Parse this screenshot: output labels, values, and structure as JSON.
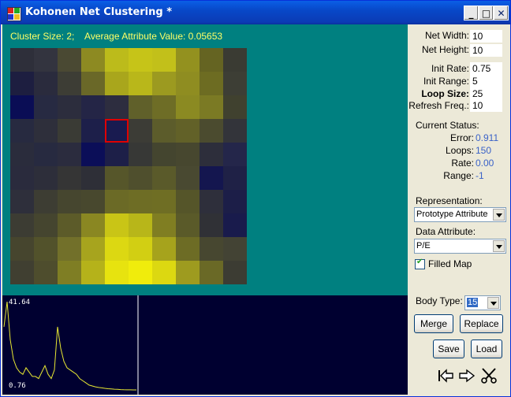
{
  "window": {
    "title": "Kohonen Net Clustering *"
  },
  "status_line": "Cluster Size: 2;    Average Attribute Value: 0.05653",
  "map": {
    "rows": 10,
    "cols": 10,
    "selected_cell": {
      "row": 3,
      "col": 4
    },
    "cell_colors": [
      [
        "#2e2f3a",
        "#33343f",
        "#4a4933",
        "#8d8a22",
        "#bcbb1b",
        "#c6c418",
        "#c2c01a",
        "#93911f",
        "#656422",
        "#3a3b33"
      ],
      [
        "#1d1e40",
        "#2a2b3d",
        "#3d3d35",
        "#6a6828",
        "#a9a61c",
        "#b9b71a",
        "#9c9a20",
        "#8f8d21",
        "#6d6c22",
        "#3d3e35"
      ],
      [
        "#0a0d55",
        "#272a42",
        "#2c2d3d",
        "#242546",
        "#2d2d3f",
        "#60602a",
        "#6e6d26",
        "#8b8a22",
        "#7b7a24",
        "#40412f"
      ],
      [
        "#272a40",
        "#2e2f3b",
        "#3a3b35",
        "#1d1f4a",
        "#191b50",
        "#3c3c36",
        "#5c5c2b",
        "#626128",
        "#4b4b2f",
        "#33343a"
      ],
      [
        "#2a2c3c",
        "#272a40",
        "#2b2c3e",
        "#0b0e58",
        "#1d1f48",
        "#373836",
        "#44452f",
        "#47472f",
        "#2d2e3b",
        "#24264a"
      ],
      [
        "#2a2b3d",
        "#2d2e3a",
        "#353535",
        "#2e2f37",
        "#56562a",
        "#4f4f2d",
        "#5a5a2a",
        "#494931",
        "#14164f",
        "#1f2146"
      ],
      [
        "#2e2f3b",
        "#3d3d33",
        "#46462f",
        "#48482e",
        "#6b6a26",
        "#6e6d25",
        "#6f6e24",
        "#555529",
        "#2e2f3b",
        "#1c1e48"
      ],
      [
        "#3c3c33",
        "#45452f",
        "#5c5b29",
        "#8a8722",
        "#c9c516",
        "#b8b619",
        "#807e22",
        "#5a5a29",
        "#303136",
        "#191b4c"
      ],
      [
        "#46452e",
        "#52522b",
        "#72702a",
        "#a7a41e",
        "#dcd812",
        "#d2cf13",
        "#a6a31c",
        "#6d6c25",
        "#474730",
        "#434334"
      ],
      [
        "#403f31",
        "#4e4d2d",
        "#7f7e24",
        "#b5b21a",
        "#e7e30f",
        "#f0ec0c",
        "#dcd811",
        "#9e9b1f",
        "#6a6926",
        "#3c3c33"
      ]
    ]
  },
  "error_plot": {
    "max_label": "41.64",
    "min_label": "0.76",
    "values": [
      30,
      41.64,
      24,
      15,
      11,
      9,
      8,
      11,
      9,
      7,
      7,
      6,
      9,
      12,
      8,
      6,
      10,
      30,
      20,
      14,
      11,
      10,
      9,
      8,
      6,
      5,
      4,
      3,
      2.6,
      2.2,
      1.9,
      1.7,
      1.5,
      1.3,
      1.2,
      1.1,
      1.0,
      0.9,
      0.85,
      0.8,
      0.78,
      0.77,
      0.76
    ],
    "line_color": "#e8e832"
  },
  "panel": {
    "net_width_label": "Net Width:",
    "net_width": "10",
    "net_height_label": "Net Height:",
    "net_height": "10",
    "init_rate_label": "Init Rate:",
    "init_rate": "0.75",
    "init_range_label": "Init Range:",
    "init_range": "5",
    "loop_size_label": "Loop Size:",
    "loop_size": "25",
    "refresh_label": "Refresh Freq.:",
    "refresh": "10",
    "current_status_label": "Current Status:",
    "error_label": "Error:",
    "error": "0.911",
    "loops_label": "Loops:",
    "loops": "150",
    "rate_label": "Rate:",
    "rate": "0.00",
    "range_label": "Range:",
    "range": "-1",
    "representation_label": "Representation:",
    "representation": "Prototype Attribute",
    "data_attribute_label": "Data Attribute:",
    "data_attribute": "P/E",
    "filled_map_label": "Filled Map",
    "body_type_label": "Body Type:",
    "body_type": "15",
    "merge": "Merge",
    "replace": "Replace",
    "save": "Save",
    "load": "Load"
  },
  "colors": {
    "accent": "#0a246a",
    "map_background": "#008080",
    "plot_background": "#000030",
    "status_value": "#3a62c8"
  }
}
